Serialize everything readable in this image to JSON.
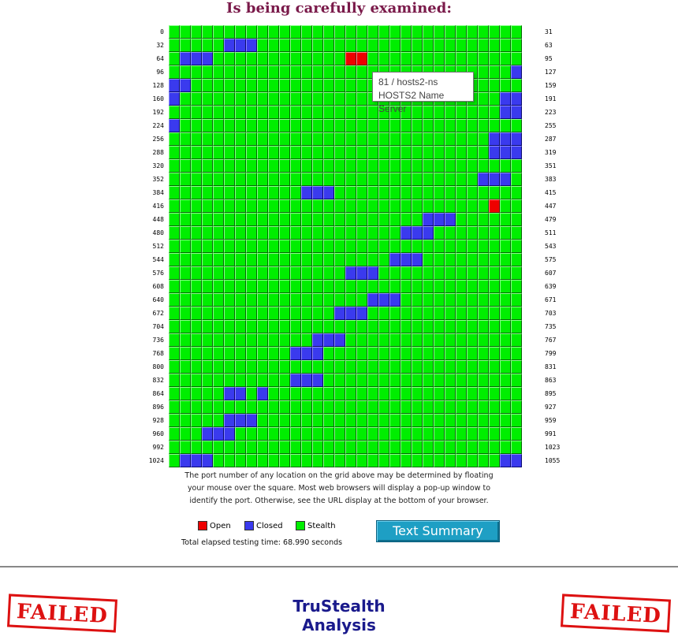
{
  "title": "Is being carefully examined:",
  "grid": {
    "row_start_labels": [
      "0",
      "32",
      "64",
      "96",
      "128",
      "160",
      "192",
      "224",
      "256",
      "288",
      "320",
      "352",
      "384",
      "416",
      "448",
      "480",
      "512",
      "544",
      "576",
      "608",
      "640",
      "672",
      "704",
      "736",
      "768",
      "800",
      "832",
      "864",
      "896",
      "928",
      "960",
      "992",
      "1024"
    ],
    "row_end_labels": [
      "31",
      "63",
      "95",
      "127",
      "159",
      "191",
      "223",
      "255",
      "287",
      "319",
      "351",
      "383",
      "415",
      "447",
      "479",
      "511",
      "543",
      "575",
      "607",
      "639",
      "671",
      "703",
      "735",
      "767",
      "799",
      "831",
      "863",
      "895",
      "927",
      "959",
      "991",
      "1023",
      "1055"
    ],
    "open_ports": [
      80,
      81,
      445
    ],
    "closed_ports": [
      37,
      38,
      39,
      65,
      66,
      67,
      127,
      128,
      129,
      160,
      190,
      191,
      222,
      223,
      224,
      285,
      286,
      287,
      317,
      318,
      319,
      380,
      381,
      382,
      396,
      397,
      398,
      471,
      472,
      473,
      501,
      502,
      503,
      564,
      565,
      566,
      592,
      593,
      594,
      658,
      659,
      660,
      687,
      688,
      689,
      749,
      750,
      751,
      779,
      780,
      781,
      843,
      844,
      845,
      869,
      870,
      872,
      933,
      934,
      935,
      963,
      964,
      965,
      1025,
      1026,
      1027,
      1054,
      1055
    ]
  },
  "tooltip": {
    "line1": "81 / hosts2-ns",
    "line2": "HOSTS2 Name Server"
  },
  "instructions": {
    "line1": "The port number of any location on the grid above may be determined by floating",
    "line2": "your mouse over the square. Most web browsers will display a pop-up window to",
    "line3": "identify the port. Otherwise, see the URL display at the bottom of your browser."
  },
  "legend": {
    "open_label": "Open",
    "closed_label": "Closed",
    "stealth_label": "Stealth"
  },
  "colors": {
    "open": "#ee0000",
    "closed": "#3a3aee",
    "stealth": "#00ee00",
    "title": "#7a1a4a",
    "button": "#1e9fc4",
    "stamp": "#dd1111",
    "analysis_title": "#1a1a8c"
  },
  "elapsed_text": "Total elapsed testing time: 68.990 seconds",
  "summary_button_label": "Text Summary",
  "stamp_text": "FAILED",
  "analysis": {
    "line1": "TruStealth",
    "line2": "Analysis"
  }
}
